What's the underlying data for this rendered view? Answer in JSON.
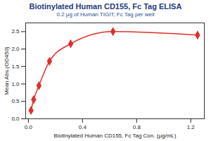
{
  "chart_data": {
    "type": "line",
    "title": "Biotinylated Human CD155, Fc Tag ELISA",
    "subtitle": "0.2 μg of Human TIGIT, Fc Tag per well",
    "x_label": "Biotinylated Human CD155, Fc Tag Con. (μg/mL)",
    "y_label": "Mean Abs.(OD450)",
    "x": [
      0.0195,
      0.039,
      0.078,
      0.156,
      0.3125,
      0.625,
      1.25
    ],
    "values": [
      0.24,
      0.55,
      0.95,
      1.65,
      2.15,
      2.5,
      2.4
    ],
    "color": "#e0302a",
    "marker": "diamond",
    "xlim": [
      -0.02,
      1.3
    ],
    "xticks": [
      {
        "value": 0,
        "label": "0.0"
      },
      0.4,
      0.8,
      1.2
    ],
    "ylim": [
      0,
      2.75
    ],
    "yticks": [
      {
        "value": 0,
        "label": "0.0"
      },
      0.5,
      {
        "value": 1,
        "label": "1.0"
      },
      1.5,
      {
        "value": 2,
        "label": "2.0"
      },
      2.5
    ]
  }
}
